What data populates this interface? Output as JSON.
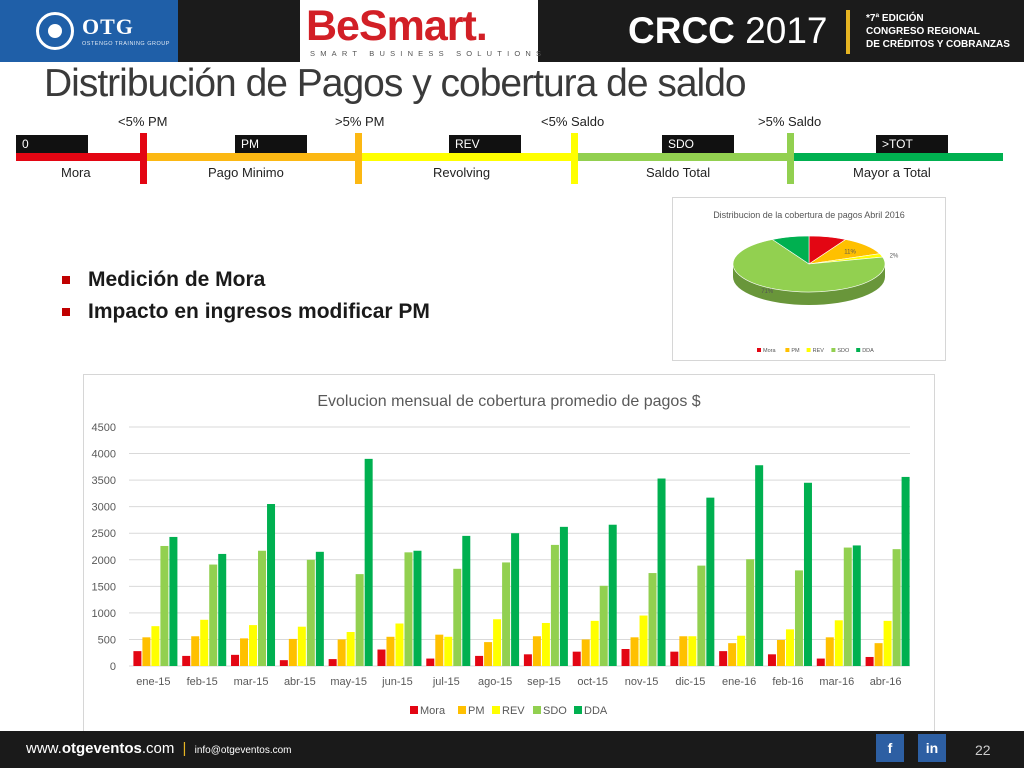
{
  "header": {
    "otg_name": "OTG",
    "otg_sub": "OSTENGO TRAINING GROUP",
    "besmart_name": "BeSmart.",
    "besmart_sub": "SMART BUSINESS SOLUTIONS",
    "crcc_name": "CRCC",
    "crcc_year": "2017",
    "crcc_line1": "*7ª EDICIÓN",
    "crcc_line2": "CONGRESO REGIONAL",
    "crcc_line3": "DE CRÉDITOS Y COBRANZAS"
  },
  "slide": {
    "title": "Distribución de Pagos y cobertura de saldo"
  },
  "scale": {
    "top_labels": [
      "<5% PM",
      ">5% PM",
      "<5% Saldo",
      ">5% Saldo"
    ],
    "boxes": [
      "0",
      "PM",
      "REV",
      "SDO",
      ">TOT"
    ],
    "bottom_labels": [
      "Mora",
      "Pago Minimo",
      "Revolving",
      "Saldo Total",
      "Mayor a Total"
    ],
    "colors": [
      "#e30613",
      "#fcb813",
      "#ffff00",
      "#92d050",
      "#00b050"
    ]
  },
  "bullets": [
    "Medición de Mora",
    "Impacto en ingresos modificar PM"
  ],
  "colors": {
    "Mora": "#e30613",
    "PM": "#ffc000",
    "REV": "#ffff00",
    "SDO": "#92d050",
    "DDA": "#00b050"
  },
  "chart_data": [
    {
      "type": "pie",
      "title": "Distribucion de la cobertura de pagos Abril 2016",
      "categories": [
        "Mora",
        "PM",
        "REV",
        "SDO",
        "DDA"
      ],
      "values": [
        8,
        11,
        2,
        71,
        8
      ],
      "data_labels": [
        "",
        "11%",
        "2%",
        "71%",
        ""
      ],
      "legend_position": "bottom",
      "style": "3d"
    },
    {
      "type": "bar",
      "title": "Evolucion mensual de cobertura promedio de pagos $",
      "categories": [
        "ene-15",
        "feb-15",
        "mar-15",
        "abr-15",
        "may-15",
        "jun-15",
        "jul-15",
        "ago-15",
        "sep-15",
        "oct-15",
        "nov-15",
        "dic-15",
        "ene-16",
        "feb-16",
        "mar-16",
        "abr-16"
      ],
      "series": [
        {
          "name": "Mora",
          "values": [
            280,
            190,
            210,
            110,
            130,
            310,
            140,
            190,
            220,
            270,
            320,
            270,
            280,
            220,
            140,
            170
          ]
        },
        {
          "name": "PM",
          "values": [
            540,
            560,
            520,
            510,
            500,
            550,
            590,
            450,
            560,
            500,
            540,
            560,
            430,
            490,
            540,
            430
          ]
        },
        {
          "name": "REV",
          "values": [
            750,
            870,
            770,
            740,
            640,
            800,
            550,
            880,
            810,
            850,
            950,
            560,
            570,
            690,
            860,
            850
          ]
        },
        {
          "name": "SDO",
          "values": [
            2260,
            1910,
            2170,
            2000,
            1730,
            2140,
            1830,
            1950,
            2280,
            1510,
            1750,
            1890,
            2010,
            1800,
            2230,
            2200
          ]
        },
        {
          "name": "DDA",
          "values": [
            2430,
            2110,
            3050,
            2150,
            3900,
            2170,
            2450,
            2500,
            2620,
            2660,
            3530,
            3170,
            3780,
            3450,
            2270,
            3560
          ]
        }
      ],
      "yticks": [
        "0",
        "500",
        "1000",
        "1500",
        "2000",
        "2500",
        "3000",
        "3500",
        "4000",
        "4500"
      ],
      "ylim": [
        0,
        4500
      ],
      "grid": true,
      "legend_position": "bottom"
    }
  ],
  "footer": {
    "web_pre": "www.",
    "web_bold": "otgeventos",
    "web_post": ".com",
    "separator": "|",
    "email": "info@otgeventos.com",
    "facebook": "f",
    "linkedin": "in",
    "page_number": "22"
  }
}
